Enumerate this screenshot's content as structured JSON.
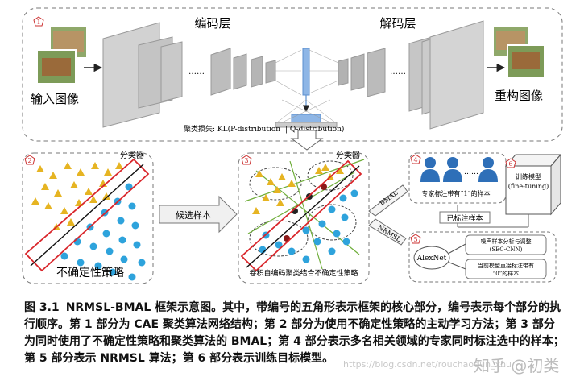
{
  "panel1": {
    "marker": "1",
    "encoder_label": "编码层",
    "decoder_label": "解码层",
    "input_label": "输入图像",
    "output_label": "重构图像",
    "loss_label": "聚类损失: KL(P-distribution || Q-distribution)",
    "dots": "……"
  },
  "panel2": {
    "marker": "2",
    "classifier_label": "分类器",
    "strategy_label": "不确定性策略"
  },
  "arrow_candidates": "候选样本",
  "panel3": {
    "marker": "3",
    "classifier_label": "分类器",
    "strategy_label": "卷积自编码聚类结合不确定性策略"
  },
  "bmal_label": "BMAL",
  "nrmsl_label": "NRMSL",
  "panel4": {
    "marker": "4",
    "experts_label": "专家标注带有“1”的样本",
    "labeled_label": "已标注样本"
  },
  "panel5": {
    "marker": "5",
    "alexnet_label": "AlexNet",
    "noise_line1": "噪声样本分析与调整",
    "noise_line2": "(SEC-CNN)",
    "current_line1": "当前模型直接标注带有",
    "current_line2": "“0”的样本"
  },
  "panel6": {
    "marker": "6",
    "train_line1": "训练模型",
    "train_line2": "(fine-tuning)"
  },
  "caption": {
    "figure": "图 3.1",
    "text": "NRMSL-BMAL 框架示意图。其中，带编号的五角形表示框架的核心部分，编号表示每个部分的执行顺序。第 1 部分为 CAE 聚类算法网络结构；第 2 部分为使用不确定性策略的主动学习方法；第 3 部分为同时使用了不确定性策略和聚类算法的 BMAL；第 4 部分表示多名相关领域的专家同时标注选中的样本；第 5 部分表示 NRMSL 算法；第 6 部分表示训练目标模型。"
  },
  "watermark": "https://blog.csdn.net/rouchaoqun_xhu",
  "watermark_logo": "知乎 @初类",
  "colors": {
    "accent_red": "#d9262b",
    "triangle": "#e6b422",
    "circle": "#2ea3dc",
    "expert": "#2e6fb8",
    "line_green": "#6fae3a",
    "layer_gray": "#cfcfcf"
  }
}
